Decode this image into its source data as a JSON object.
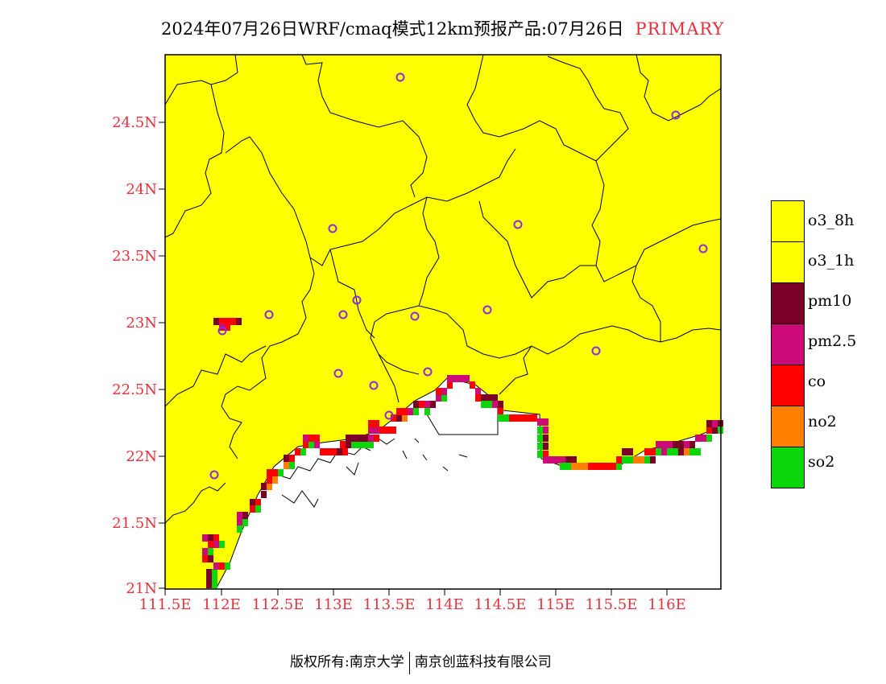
{
  "header": {
    "title": "2024年07月26日WRF/cmaq模式12km预报产品:07月26日",
    "tag": "PRIMARY"
  },
  "axes": {
    "y_labels": [
      "24.5N",
      "24N",
      "23.5N",
      "23N",
      "22.5N",
      "22N",
      "21.5N",
      "21N"
    ],
    "x_labels": [
      "111.5E",
      "112E",
      "112.5E",
      "113E",
      "113.5E",
      "114E",
      "114.5E",
      "115E",
      "115.5E",
      "116E"
    ]
  },
  "legend": {
    "items": [
      {
        "label": "o3_8h",
        "color": "#ffff00"
      },
      {
        "label": "o3_1h",
        "color": "#ffff00"
      },
      {
        "label": "pm10",
        "color": "#7a0028"
      },
      {
        "label": "pm2.5",
        "color": "#cc0a78"
      },
      {
        "label": "co",
        "color": "#ff0000"
      },
      {
        "label": "no2",
        "color": "#ff7f00"
      },
      {
        "label": "so2",
        "color": "#0ad60a"
      }
    ]
  },
  "colors": {
    "land_fill": "#ffff00",
    "sea_fill": "#ffffff",
    "city_marker": "#8a2be2",
    "axis_label": "#e8303b"
  },
  "footer": {
    "left": "版权所有:南京大学",
    "right": "南京创蓝科技有限公司"
  }
}
